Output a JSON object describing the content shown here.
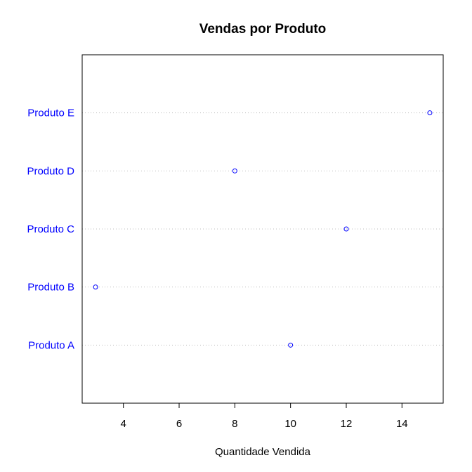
{
  "chart_data": {
    "type": "dot",
    "title": "Vendas por Produto",
    "xlabel": "Quantidade Vendida",
    "ylabel": "",
    "categories": [
      "Produto A",
      "Produto B",
      "Produto C",
      "Produto D",
      "Produto E"
    ],
    "values": [
      10,
      3,
      12,
      8,
      15
    ],
    "xlim": [
      2.52,
      15.48
    ],
    "xticks": [
      4,
      6,
      8,
      10,
      12,
      14
    ],
    "grid": "dotted horizontal",
    "colors": {
      "point": "#0000ff",
      "category_label": "#0000ff",
      "gridline": "#bebebe",
      "frame": "#000000"
    }
  }
}
